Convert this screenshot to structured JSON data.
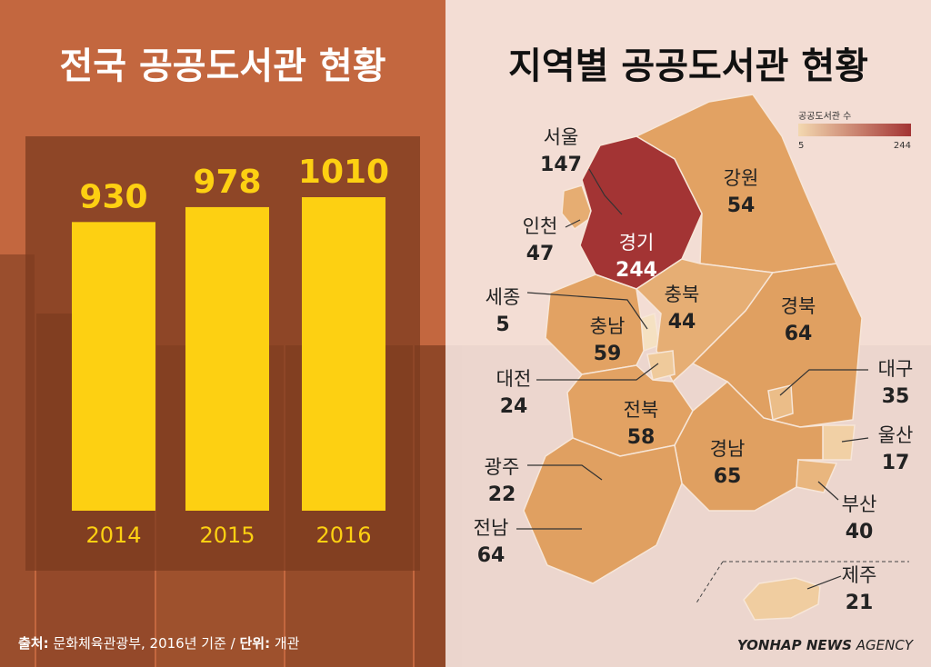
{
  "chart_data": [
    {
      "type": "bar",
      "title": "전국 공공도서관 현황",
      "categories": [
        "2014",
        "2015",
        "2016"
      ],
      "values": [
        930,
        978,
        1010
      ],
      "color": "#fdd012"
    },
    {
      "type": "choropleth",
      "title": "지역별 공공도서관 현황",
      "colorbar": {
        "title": "공공도서관 수",
        "ticks": [
          5,
          244
        ],
        "colors": [
          "#f3d8b0",
          "#a33434"
        ]
      },
      "regions": [
        {
          "name": "서울",
          "value": 147,
          "color": "#bd5a3a"
        },
        {
          "name": "강원",
          "value": 54,
          "color": "#e2a263"
        },
        {
          "name": "인천",
          "value": 47,
          "color": "#e6ad72"
        },
        {
          "name": "경기",
          "value": 244,
          "color": "#a33434"
        },
        {
          "name": "세종",
          "value": 5,
          "color": "#f5e1c2"
        },
        {
          "name": "충북",
          "value": 44,
          "color": "#e6ae74"
        },
        {
          "name": "충남",
          "value": 59,
          "color": "#e2a263"
        },
        {
          "name": "경북",
          "value": 64,
          "color": "#e0a061"
        },
        {
          "name": "대전",
          "value": 24,
          "color": "#efca9b"
        },
        {
          "name": "대구",
          "value": 35,
          "color": "#ebbd88"
        },
        {
          "name": "전북",
          "value": 58,
          "color": "#e2a263"
        },
        {
          "name": "울산",
          "value": 17,
          "color": "#f1d0a5"
        },
        {
          "name": "경남",
          "value": 65,
          "color": "#e0a061"
        },
        {
          "name": "광주",
          "value": 22,
          "color": "#f0cc9e"
        },
        {
          "name": "부산",
          "value": 40,
          "color": "#e9b67e"
        },
        {
          "name": "전남",
          "value": 64,
          "color": "#e0a061"
        },
        {
          "name": "제주",
          "value": 21,
          "color": "#f0cda0"
        }
      ]
    }
  ],
  "footer": {
    "source_label": "출처:",
    "source": "문화체육관광부, 2016년 기준 /",
    "unit_label": "단위:",
    "unit": "개관"
  },
  "credit": {
    "main": "YONHAP NEWS",
    "sub": "AGENCY"
  }
}
